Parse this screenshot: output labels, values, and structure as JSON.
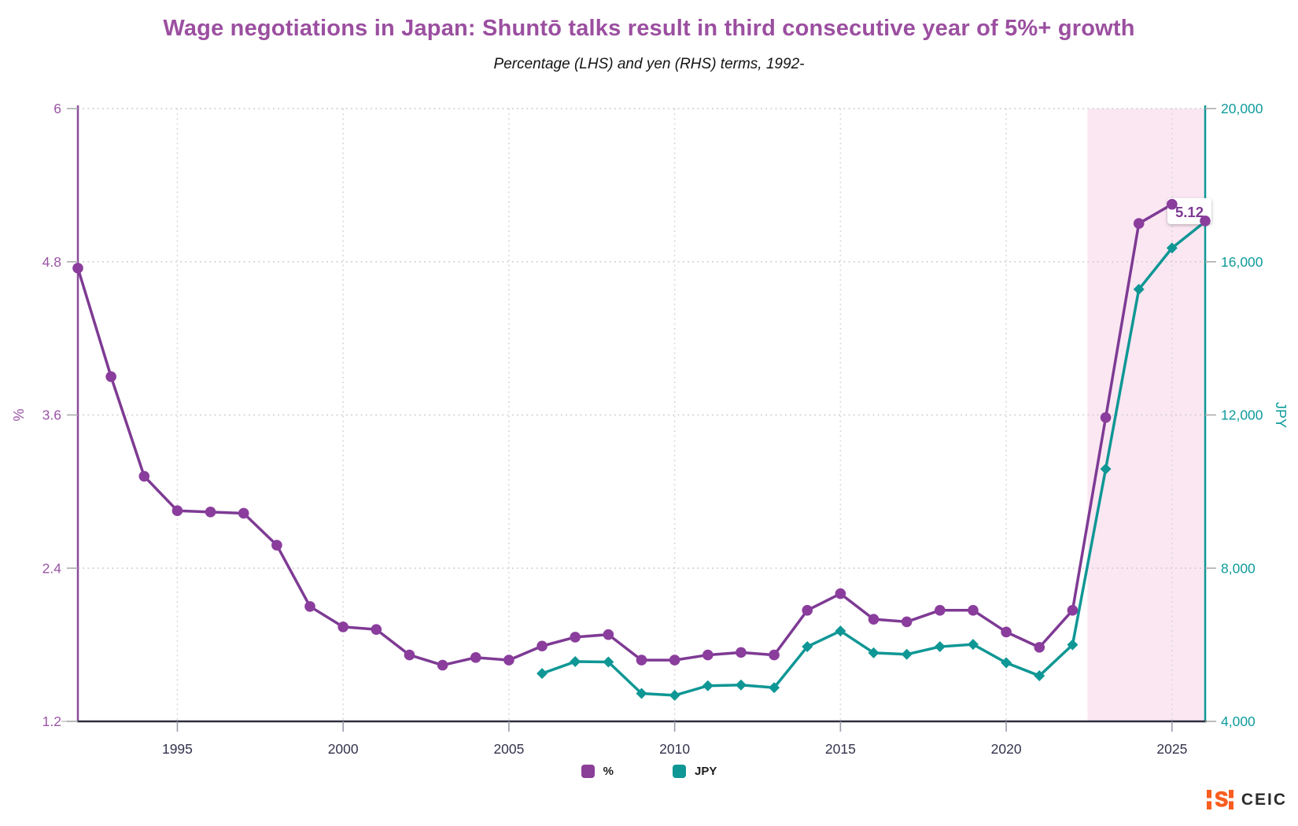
{
  "chart_data": {
    "type": "line",
    "title": "Wage negotiations in Japan: Shuntō talks result in third consecutive year of 5%+ growth",
    "subtitle": "Percentage (LHS) and yen (RHS) terms, 1992-",
    "x_start": 1992,
    "x_end": 2026,
    "x_ticks": [
      1995,
      2000,
      2005,
      2010,
      2015,
      2020,
      2025
    ],
    "left_axis": {
      "label": "%",
      "min": 1.2,
      "max": 6,
      "tick_values": [
        6,
        4.8,
        3.6,
        2.4,
        1.2
      ],
      "tick_labels": [
        "6",
        "4.8",
        "3.6",
        "2.4",
        "1.2"
      ],
      "color": "#9a55a5",
      "axis_line_color": "#8b4a9c"
    },
    "right_axis": {
      "label": "JPY",
      "min": 4000,
      "max": 20000,
      "tick_values": [
        20000,
        16000,
        12000,
        8000,
        4000
      ],
      "tick_labels": [
        "20,000",
        "16,000",
        "12,000",
        "8,000",
        "4,000"
      ],
      "color": "#0f9b9b",
      "axis_line_color": "#0f9795"
    },
    "bottom_axis": {
      "color": "#2d2d3f",
      "tick_label_color": "#33334d"
    },
    "grid": {
      "h_color": "#c9c9c9",
      "v_color": "#d6d6d6"
    },
    "series": [
      {
        "name": "%",
        "axis": "left",
        "marker": "circle",
        "line_color": "#7e3a94",
        "marker_color": "#8a3d9c",
        "years": [
          1992,
          1993,
          1994,
          1995,
          1996,
          1997,
          1998,
          1999,
          2000,
          2001,
          2002,
          2003,
          2004,
          2005,
          2006,
          2007,
          2008,
          2009,
          2010,
          2011,
          2012,
          2013,
          2014,
          2015,
          2016,
          2017,
          2018,
          2019,
          2020,
          2021,
          2022,
          2023,
          2024,
          2025,
          2026
        ],
        "values": [
          4.75,
          3.9,
          3.12,
          2.85,
          2.84,
          2.83,
          2.58,
          2.1,
          1.94,
          1.92,
          1.72,
          1.64,
          1.7,
          1.68,
          1.79,
          1.86,
          1.88,
          1.68,
          1.68,
          1.72,
          1.74,
          1.72,
          2.07,
          2.2,
          2.0,
          1.98,
          2.07,
          2.07,
          1.9,
          1.78,
          2.07,
          3.58,
          5.1,
          5.25,
          5.12
        ]
      },
      {
        "name": "JPY",
        "axis": "right",
        "marker": "diamond",
        "line_color": "#0f9795",
        "marker_color": "#0f9795",
        "years": [
          2006,
          2007,
          2008,
          2009,
          2010,
          2011,
          2012,
          2013,
          2014,
          2015,
          2016,
          2017,
          2018,
          2019,
          2020,
          2021,
          2022,
          2023,
          2024,
          2025,
          2026
        ],
        "values": [
          5250,
          5560,
          5550,
          4730,
          4680,
          4930,
          4950,
          4880,
          5950,
          6360,
          5790,
          5750,
          5950,
          6010,
          5530,
          5190,
          6000,
          10590,
          15280,
          16360,
          17050
        ]
      }
    ],
    "highlight_band": {
      "from": 2022.45,
      "to": 2026,
      "color": "#fbe7f2"
    },
    "annotation": {
      "text": "5.12",
      "year": 2026,
      "value": 5.12,
      "text_color": "#7e3a94",
      "box_color": "#ffffff"
    },
    "legend": [
      {
        "label": "%",
        "color": "#8b3f98"
      },
      {
        "label": "JPY",
        "color": "#0f9795"
      }
    ]
  },
  "logo": {
    "text": "CEIC",
    "mark_color": "#f95d1f"
  }
}
